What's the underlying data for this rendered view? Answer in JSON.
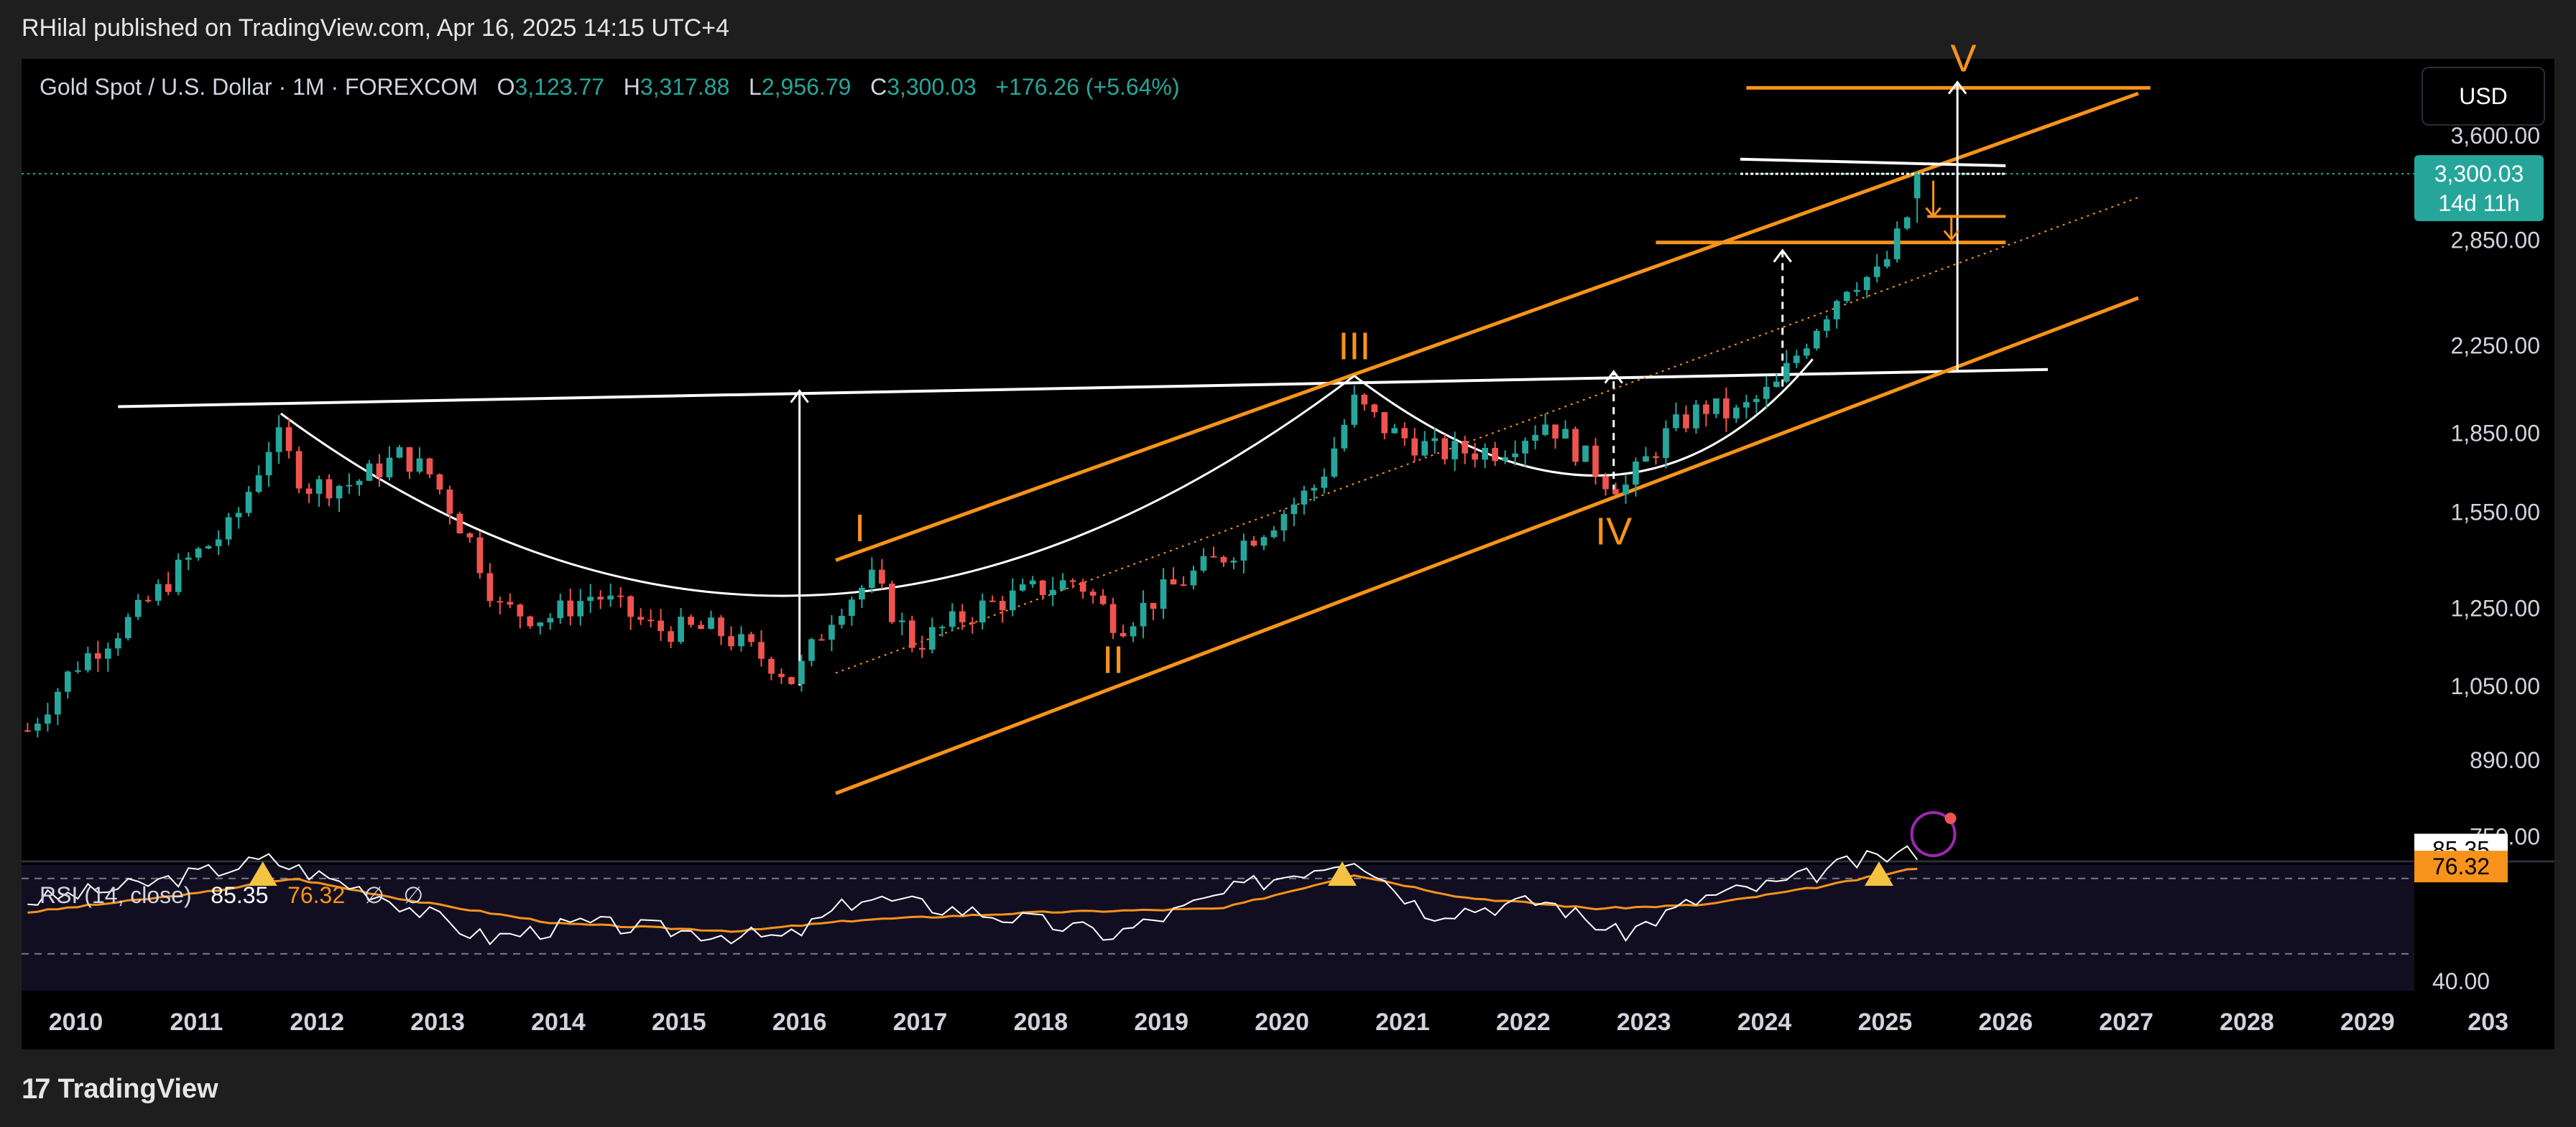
{
  "header": {
    "publisher_line": "RHilal published on TradingView.com, Apr 16, 2025 14:15 UTC+4"
  },
  "legend": {
    "symbol": "Gold Spot / U.S. Dollar · 1M · FOREXCOM",
    "o_label": "O",
    "o_value": "3,123.77",
    "h_label": "H",
    "h_value": "3,317.88",
    "l_label": "L",
    "l_value": "2,956.79",
    "c_label": "C",
    "c_value": "3,300.03",
    "change": "+176.26 (+5.64%)"
  },
  "currency_button": "USD",
  "price_axis": {
    "ticks": [
      "3,600.00",
      "2,850.00",
      "2,250.00",
      "1,850.00",
      "1,550.00",
      "1,250.00",
      "1,050.00",
      "890.00",
      "750.00"
    ],
    "current_price_label": "3,300.03",
    "countdown_label": "14d 11h"
  },
  "rsi": {
    "title": "RSI (14, close)",
    "value": "85.35",
    "ma_value": "76.32",
    "extra1": "∅",
    "extra2": "∅",
    "axis_label": "40.00"
  },
  "time_axis": [
    "2010",
    "2011",
    "2012",
    "2013",
    "2014",
    "2015",
    "2016",
    "2017",
    "2018",
    "2019",
    "2020",
    "2021",
    "2022",
    "2023",
    "2024",
    "2025",
    "2026",
    "2027",
    "2028",
    "2029",
    "203"
  ],
  "wave_labels": [
    "I",
    "II",
    "III",
    "IV",
    "V"
  ],
  "footer": {
    "brand": "TradingView"
  },
  "colors": {
    "background": "#000000",
    "frame": "#1e1e1e",
    "up": "#26a69a",
    "down": "#ef5350",
    "orange": "#f7931a",
    "white": "#ffffff",
    "rsi_ma": "#f7931a"
  },
  "chart_data": {
    "type": "candlestick",
    "interval": "1M",
    "scale": "log",
    "ylim": [
      720,
      4200
    ],
    "xlim": [
      2009.55,
      2030.55
    ],
    "candles_ohlc_yearly_path": [
      [
        2009.6,
        950
      ],
      [
        2010.0,
        1100
      ],
      [
        2010.5,
        1230
      ],
      [
        2010.9,
        1380
      ],
      [
        2011.3,
        1500
      ],
      [
        2011.65,
        1850
      ],
      [
        2011.9,
        1640
      ],
      [
        2012.3,
        1650
      ],
      [
        2012.7,
        1760
      ],
      [
        2012.95,
        1680
      ],
      [
        2013.3,
        1430
      ],
      [
        2013.5,
        1250
      ],
      [
        2013.9,
        1220
      ],
      [
        2014.3,
        1290
      ],
      [
        2014.8,
        1190
      ],
      [
        2015.3,
        1190
      ],
      [
        2015.8,
        1100
      ],
      [
        2015.95,
        1060
      ],
      [
        2016.3,
        1250
      ],
      [
        2016.6,
        1330
      ],
      [
        2016.95,
        1150
      ],
      [
        2017.5,
        1250
      ],
      [
        2017.95,
        1300
      ],
      [
        2018.3,
        1330
      ],
      [
        2018.65,
        1200
      ],
      [
        2019.0,
        1290
      ],
      [
        2019.5,
        1400
      ],
      [
        2019.9,
        1510
      ],
      [
        2020.3,
        1650
      ],
      [
        2020.6,
        1980
      ],
      [
        2020.9,
        1850
      ],
      [
        2021.3,
        1770
      ],
      [
        2021.8,
        1780
      ],
      [
        2022.2,
        1900
      ],
      [
        2022.7,
        1660
      ],
      [
        2022.85,
        1640
      ],
      [
        2023.2,
        1850
      ],
      [
        2023.5,
        1960
      ],
      [
        2023.75,
        1920
      ],
      [
        2024.1,
        2050
      ],
      [
        2024.4,
        2330
      ],
      [
        2024.7,
        2600
      ],
      [
        2024.95,
        2630
      ],
      [
        2025.1,
        2850
      ],
      [
        2025.25,
        3120
      ],
      [
        2025.33,
        3300
      ]
    ],
    "last_candle": {
      "open": 3123.77,
      "high": 3317.88,
      "low": 2956.79,
      "close": 3300.03
    },
    "rsi_series": {
      "rsi": [
        [
          2009.6,
          58
        ],
        [
          2010.5,
          66
        ],
        [
          2011.6,
          80
        ],
        [
          2012.5,
          62
        ],
        [
          2013.4,
          38
        ],
        [
          2014.2,
          46
        ],
        [
          2015.9,
          38
        ],
        [
          2016.5,
          60
        ],
        [
          2017.5,
          52
        ],
        [
          2018.6,
          40
        ],
        [
          2019.7,
          66
        ],
        [
          2020.6,
          82
        ],
        [
          2021.2,
          52
        ],
        [
          2022.2,
          58
        ],
        [
          2022.8,
          40
        ],
        [
          2023.5,
          60
        ],
        [
          2024.2,
          68
        ],
        [
          2024.7,
          78
        ],
        [
          2025.33,
          85.35
        ]
      ],
      "rsi_ma": [
        [
          2009.6,
          52
        ],
        [
          2011.0,
          62
        ],
        [
          2011.8,
          70
        ],
        [
          2012.8,
          58
        ],
        [
          2014.0,
          46
        ],
        [
          2015.5,
          42
        ],
        [
          2016.5,
          48
        ],
        [
          2018.0,
          52
        ],
        [
          2019.5,
          54
        ],
        [
          2020.6,
          72
        ],
        [
          2021.5,
          60
        ],
        [
          2022.6,
          54
        ],
        [
          2023.5,
          56
        ],
        [
          2024.5,
          66
        ],
        [
          2025.33,
          76.32
        ]
      ],
      "levels": [
        70,
        50,
        30
      ]
    },
    "annotations": {
      "neckline_white": [
        [
          2010.35,
          1960
        ],
        [
          2026.35,
          2130
        ]
      ],
      "rounding_bottom_1": "2011.7 → 2016.0 → 2020.6",
      "rounding_bottom_2": "2020.6 → 2022.85 → 2024.4",
      "channel_upper_orange": [
        [
          2016.3,
          1390
        ],
        [
          2027.1,
          3950
        ]
      ],
      "channel_lower_orange": [
        [
          2016.3,
          825
        ],
        [
          2027.1,
          2500
        ]
      ],
      "channel_mid_dotted": [
        [
          2016.3,
          1080
        ],
        [
          2027.1,
          3130
        ]
      ],
      "target_line_orange": [
        [
          2023.85,
          4000
        ],
        [
          2027.2,
          4000
        ]
      ],
      "support_line_orange": [
        [
          2023.1,
          2830
        ],
        [
          2026.0,
          2830
        ]
      ],
      "resistance_white_band": [
        [
          2023.8,
          3410
        ],
        [
          2026.0,
          3360
        ]
      ],
      "wave_points": {
        "I": [
          2016.5,
          1450
        ],
        "II": [
          2018.6,
          1080
        ],
        "III": [
          2020.6,
          2180
        ],
        "IV": [
          2022.75,
          1440
        ],
        "V": [
          2025.65,
          4150
        ]
      }
    }
  }
}
